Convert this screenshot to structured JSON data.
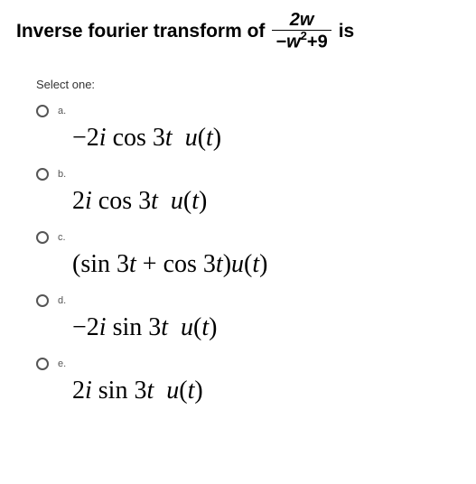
{
  "question": {
    "prefix": "Inverse fourier transform of",
    "frac_num": "2w",
    "frac_den_before": "−w",
    "frac_den_sup": "2",
    "frac_den_after": "+9",
    "suffix": "is"
  },
  "prompt": "Select one:",
  "options": [
    {
      "letter": "a.",
      "math": "−2i cos 3t  u(t)"
    },
    {
      "letter": "b.",
      "math": "2i cos 3t  u(t)"
    },
    {
      "letter": "c.",
      "math": "(sin 3t + cos 3t)u(t)"
    },
    {
      "letter": "d.",
      "math": "−2i sin 3t  u(t)"
    },
    {
      "letter": "e.",
      "math": "2i sin 3t  u(t)"
    }
  ],
  "colors": {
    "text": "#000000",
    "background": "#ffffff",
    "radio_border": "#555555"
  }
}
